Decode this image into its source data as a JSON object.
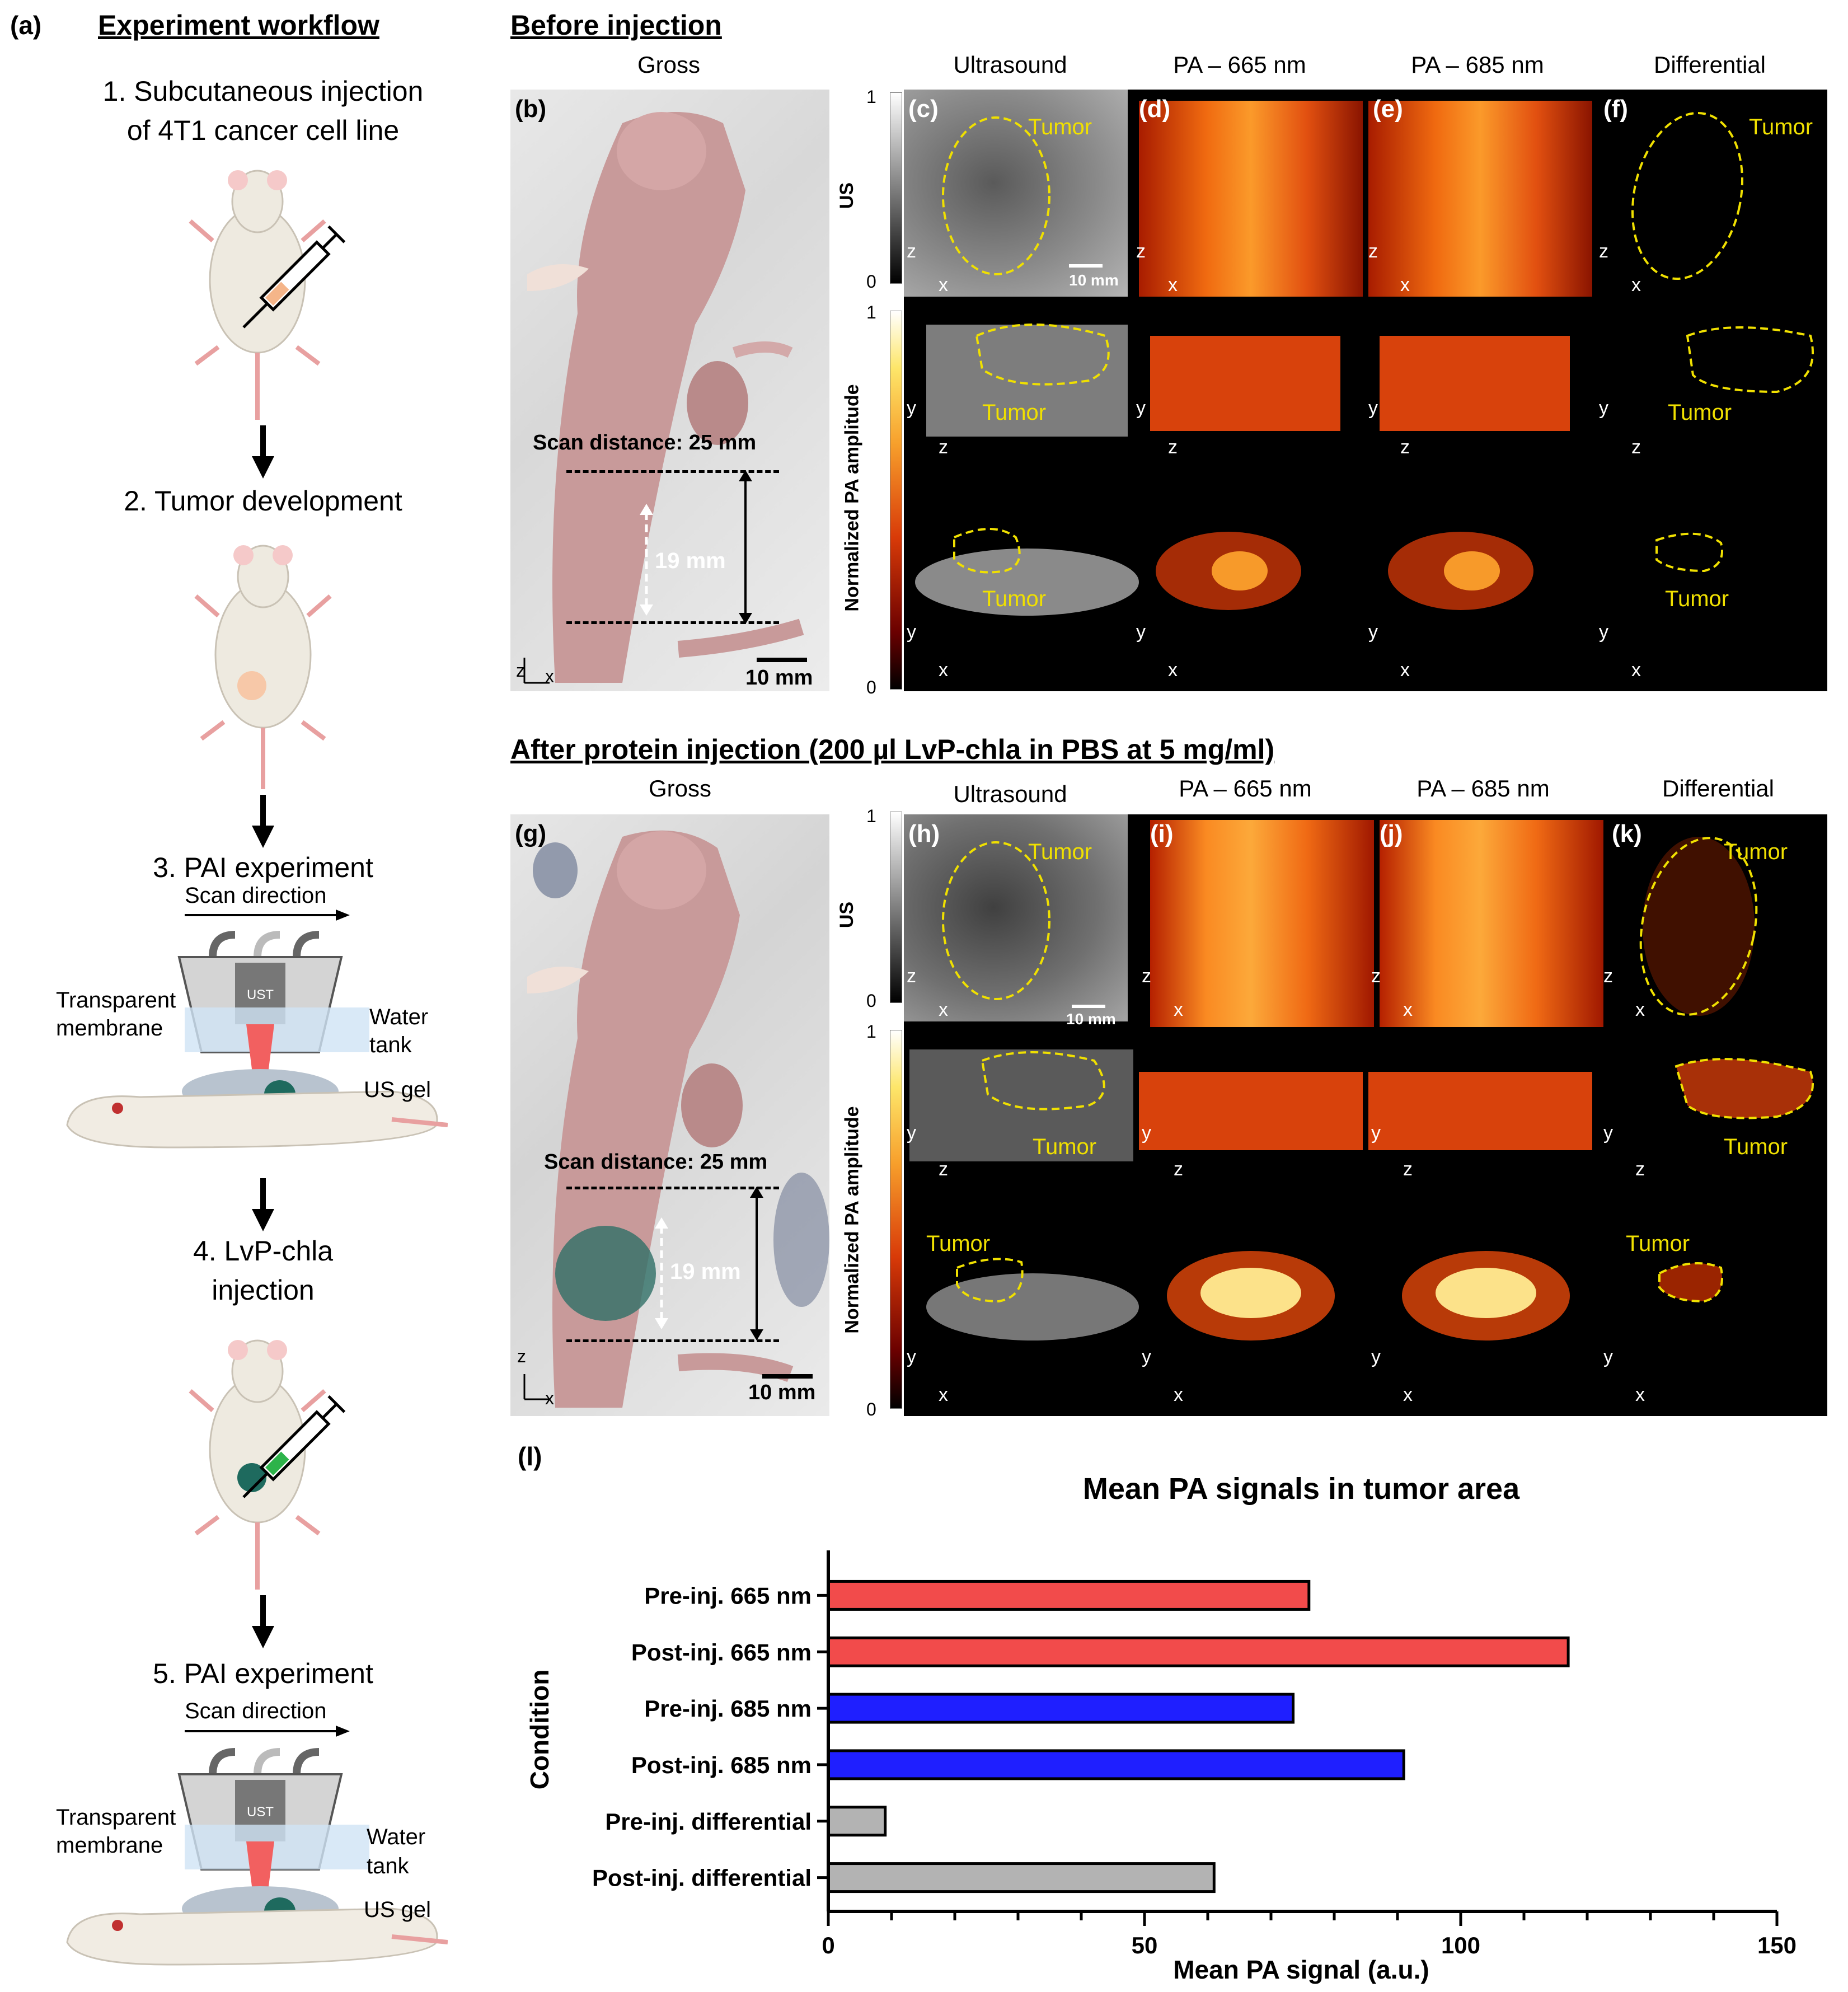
{
  "panel_a": {
    "letter": "(a)",
    "title": "Experiment workflow",
    "steps": [
      "1. Subcutaneous injection",
      "of 4T1 cancer cell line",
      "2. Tumor development",
      "3. PAI experiment",
      "4. LvP-chla",
      "injection",
      "5. PAI experiment"
    ],
    "setup": {
      "scan_direction": "Scan direction",
      "ust": "UST",
      "transparent": "Transparent",
      "membrane": "membrane",
      "water": "Water",
      "tank": "tank",
      "us_gel": "US gel"
    }
  },
  "before": {
    "heading": "Before injection",
    "columns": [
      "Gross",
      "Ultrasound",
      "PA – 665 nm",
      "PA – 685 nm",
      "Differential"
    ],
    "letters": [
      "(b)",
      "(c)",
      "(d)",
      "(e)",
      "(f)"
    ],
    "scan_distance": "Scan distance: 25 mm",
    "tumor_len": "19 mm",
    "scale": "10 mm",
    "us_scale": "10 mm"
  },
  "after": {
    "heading": "After protein injection (200 µl LvP-chla in PBS at 5 mg/ml)",
    "columns": [
      "Gross",
      "Ultrasound",
      "PA – 665 nm",
      "PA – 685 nm",
      "Differential"
    ],
    "letters": [
      "(g)",
      "(h)",
      "(i)",
      "(j)",
      "(k)"
    ],
    "scan_distance": "Scan distance: 25 mm",
    "tumor_len": "19 mm",
    "scale": "10 mm",
    "us_scale": "10 mm"
  },
  "common": {
    "tumor": "Tumor",
    "us_bar": "US",
    "pa_bar": "Normalized PA amplitude",
    "one": "1",
    "zero": "0",
    "ax_z": "z",
    "ax_x": "x",
    "ax_y": "y"
  },
  "panel_l": {
    "letter": "(l)"
  },
  "chart_data": {
    "type": "bar",
    "orientation": "horizontal",
    "title": "Mean PA signals in tumor area",
    "xlabel": "Mean PA signal (a.u.)",
    "ylabel": "Condition",
    "xlim": [
      0,
      150
    ],
    "xticks": [
      "0",
      "50",
      "100",
      "150"
    ],
    "categories": [
      "Pre-inj. 665 nm",
      "Post-inj. 665 nm",
      "Pre-inj. 685 nm",
      "Post-inj. 685 nm",
      "Pre-inj. differential",
      "Post-inj. differential"
    ],
    "values": [
      76,
      117,
      73.5,
      91,
      9,
      61
    ],
    "colors": [
      "#f24b4b",
      "#f24b4b",
      "#1f1fff",
      "#1f1fff",
      "#b3b3b3",
      "#b3b3b3"
    ]
  }
}
